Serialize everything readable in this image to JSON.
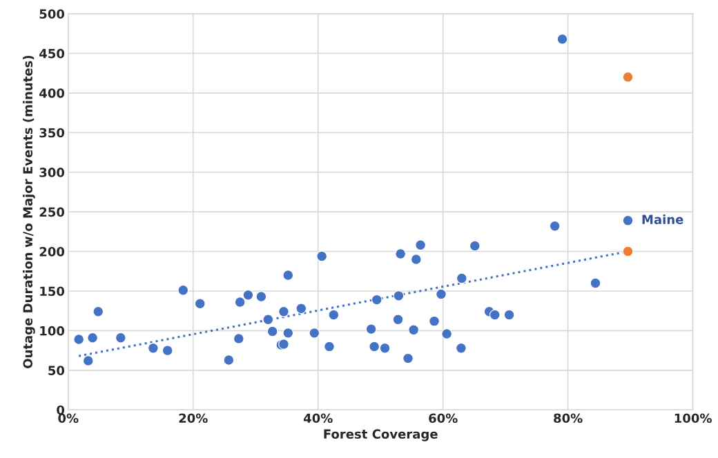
{
  "chart_data": {
    "type": "scatter",
    "xlabel": "Forest Coverage",
    "ylabel": "Outage Duration w/o Major Events (minutes)",
    "xlim": [
      0,
      100
    ],
    "xticks": [
      {
        "value": 0,
        "label": "0%"
      },
      {
        "value": 20,
        "label": "20%"
      },
      {
        "value": 40,
        "label": "40%"
      },
      {
        "value": 60,
        "label": "60%"
      },
      {
        "value": 80,
        "label": "80%"
      },
      {
        "value": 100,
        "label": "100%"
      }
    ],
    "ylim": [
      0,
      500
    ],
    "yticks": [
      0,
      50,
      100,
      150,
      200,
      250,
      300,
      350,
      400,
      450,
      500
    ],
    "grid": true,
    "marker": "circle",
    "series": [
      {
        "color": "#4472c4",
        "x": [
          1.7,
          3.2,
          3.9,
          4.8,
          8.4,
          13.6,
          15.9,
          18.4,
          21.1,
          25.7,
          27.3,
          27.5,
          28.8,
          30.9,
          32.0,
          32.7,
          34.1,
          34.5,
          34.5,
          35.2,
          35.2,
          37.3,
          39.4,
          40.6,
          41.8,
          42.5,
          48.5,
          49.0,
          49.4,
          50.7,
          52.8,
          52.9,
          53.2,
          54.4,
          55.3,
          55.7,
          56.4,
          58.6,
          59.7,
          60.6,
          62.9,
          63.0,
          65.1,
          67.4,
          68.3,
          70.6,
          77.9,
          79.1,
          84.4
        ],
        "values": [
          89,
          62,
          91,
          124,
          91,
          78,
          75,
          151,
          134,
          63,
          90,
          136,
          145,
          143,
          114,
          99,
          82,
          83,
          124,
          97,
          170,
          128,
          97,
          194,
          80,
          120,
          102,
          80,
          139,
          78,
          114,
          144,
          197,
          65,
          101,
          190,
          208,
          112,
          146,
          96,
          78,
          166,
          207,
          124,
          120,
          120,
          232,
          468,
          160
        ]
      },
      {
        "name": "Maine",
        "color": "#4472c4",
        "x": [
          89.6
        ],
        "values": [
          239
        ]
      },
      {
        "color": "#ed7d31",
        "x": [
          89.6,
          89.6
        ],
        "values": [
          420,
          200
        ]
      },
      {
        "type": "line",
        "color": "#4472c4",
        "line_style": "dotted",
        "marker": "none",
        "x": [
          1.7,
          89.6
        ],
        "values": [
          68,
          200
        ]
      }
    ]
  }
}
